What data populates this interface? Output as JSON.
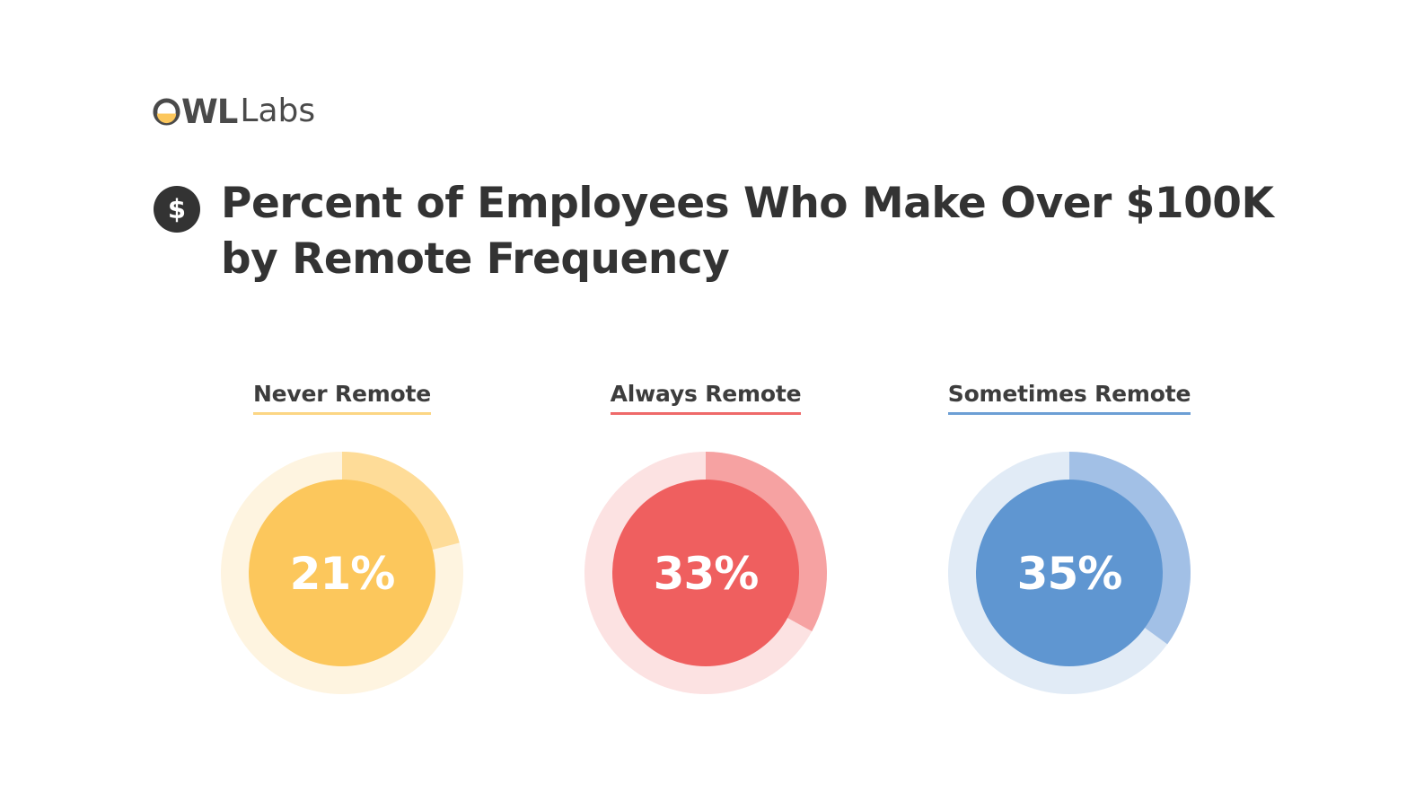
{
  "logo": {
    "brand": "OWL",
    "brand_rest": "WL",
    "suffix": "Labs"
  },
  "title_icon": "dollar-icon",
  "chart_data": {
    "type": "pie",
    "title_lines": [
      "Percent of Employees Who Make Over $100K",
      "by Remote Frequency"
    ],
    "categories": [
      "Never Remote",
      "Always Remote",
      "Sometimes Remote"
    ],
    "values": [
      21,
      33,
      35
    ],
    "value_labels": [
      "21%",
      "33%",
      "35%"
    ],
    "unit": "%",
    "colors": {
      "Never Remote": {
        "center": "#fcc75c",
        "arc": "#fedc98",
        "track": "#fef4e0",
        "underline": "#fcd684"
      },
      "Always Remote": {
        "center": "#ef5f5f",
        "arc": "#f6a2a2",
        "track": "#fce2e2",
        "underline": "#ef6a6a"
      },
      "Sometimes Remote": {
        "center": "#5f96d1",
        "arc": "#a2c0e6",
        "track": "#e1ebf6",
        "underline": "#6c9fd5"
      }
    }
  }
}
